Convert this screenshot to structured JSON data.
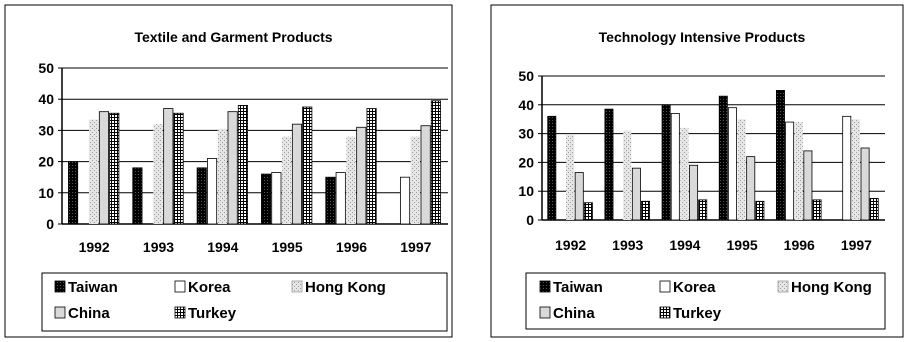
{
  "chart_data": [
    {
      "type": "bar",
      "title": "Textile and Garment Products",
      "categories": [
        "1992",
        "1993",
        "1994",
        "1995",
        "1996",
        "1997"
      ],
      "ylim": [
        0,
        50
      ],
      "yticks": [
        0,
        10,
        20,
        30,
        40,
        50
      ],
      "series": [
        {
          "name": "Taiwan",
          "values": [
            20,
            18,
            18,
            16,
            15,
            null
          ]
        },
        {
          "name": "Korea",
          "values": [
            null,
            null,
            21,
            16.5,
            16.5,
            15
          ]
        },
        {
          "name": "Hong Kong",
          "values": [
            33.5,
            32,
            30.5,
            28,
            28,
            28
          ]
        },
        {
          "name": "China",
          "values": [
            36,
            37,
            36,
            32,
            31,
            31.5
          ]
        },
        {
          "name": "Turkey",
          "values": [
            35.5,
            35.5,
            38,
            37.5,
            37,
            39.5
          ]
        }
      ],
      "legend": {
        "placement": "bottom",
        "columns": 3
      }
    },
    {
      "type": "bar",
      "title": "Technology Intensive Products",
      "categories": [
        "1992",
        "1993",
        "1994",
        "1995",
        "1996",
        "1997"
      ],
      "ylim": [
        0,
        50
      ],
      "yticks": [
        0,
        10,
        20,
        30,
        40,
        50
      ],
      "series": [
        {
          "name": "Taiwan",
          "values": [
            36,
            38.5,
            40,
            43,
            45,
            null
          ]
        },
        {
          "name": "Korea",
          "values": [
            null,
            null,
            37,
            39,
            34,
            36
          ]
        },
        {
          "name": "Hong Kong",
          "values": [
            29.5,
            31,
            32,
            35,
            34,
            35
          ]
        },
        {
          "name": "China",
          "values": [
            16.5,
            18,
            19,
            22,
            24,
            25
          ]
        },
        {
          "name": "Turkey",
          "values": [
            6,
            6.5,
            7,
            6.5,
            7,
            7.5
          ]
        }
      ],
      "legend": {
        "placement": "bottom",
        "columns": 3
      }
    }
  ],
  "styles": {
    "Taiwan": "dense-dark",
    "Korea": "white",
    "Hong Kong": "light-speckle",
    "China": "light-solid",
    "Turkey": "grid"
  }
}
